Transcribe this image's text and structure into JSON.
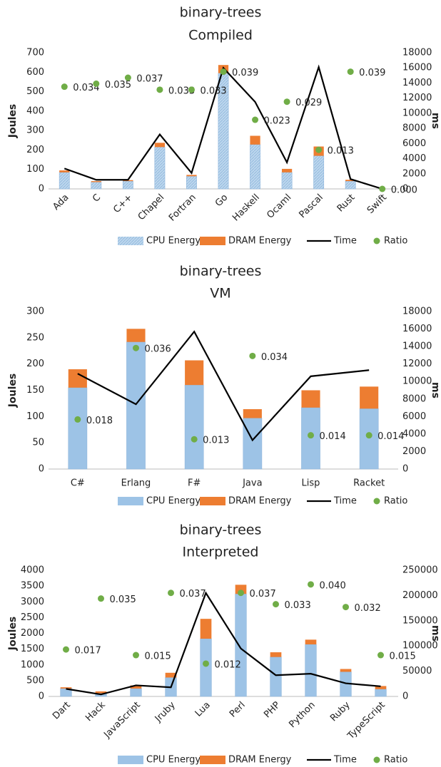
{
  "chart_data": [
    {
      "type": "bar",
      "title": "binary-trees",
      "subtitle": "Compiled",
      "y_label": "Joules",
      "y2_label": "ms",
      "grid": false,
      "rotate_x_labels": true,
      "categories": [
        "Ada",
        "C",
        "C++",
        "Chapel",
        "Fortran",
        "Go",
        "Haskell",
        "Ocaml",
        "Pascal",
        "Rust",
        "Swift"
      ],
      "ylim": [
        0,
        700
      ],
      "yticks": [
        0,
        100,
        200,
        300,
        400,
        500,
        600,
        700
      ],
      "y2lim": [
        0,
        18000
      ],
      "y2ticks": [
        0,
        2000,
        4000,
        6000,
        8000,
        10000,
        12000,
        14000,
        16000,
        18000
      ],
      "y3lim": [
        0,
        0.0453
      ],
      "series": [
        {
          "name": "CPU Energy",
          "type": "bar",
          "color": "#9dc3e6",
          "values": [
            85,
            35,
            40,
            215,
            65,
            595,
            228,
            85,
            170,
            40,
            null
          ]
        },
        {
          "name": "DRAM Energy",
          "type": "bar",
          "color": "#ed7d31",
          "values": [
            10,
            5,
            5,
            22,
            7,
            42,
            45,
            18,
            48,
            7,
            null
          ]
        },
        {
          "name": "Time",
          "type": "line",
          "axis": "y2",
          "color": "#000000",
          "values": [
            2700,
            1200,
            1200,
            7200,
            2100,
            16000,
            11500,
            3500,
            16100,
            1300,
            0
          ]
        },
        {
          "name": "Ratio",
          "type": "scatter",
          "axis": "y3",
          "color": "#70ad47",
          "values": [
            0.034,
            0.035,
            0.037,
            0.033,
            0.033,
            0.039,
            0.023,
            0.029,
            0.013,
            0.039,
            0.0
          ],
          "value_labels": [
            "0.034",
            "0.035",
            "0.037",
            "0.033",
            "0.033",
            "0.039",
            "0.023",
            "0.029",
            "0.013",
            "0.039",
            "0.000"
          ]
        }
      ]
    },
    {
      "type": "bar",
      "title": "binary-trees",
      "subtitle": "VM",
      "y_label": "Joules",
      "y2_label": "ms",
      "grid": false,
      "rotate_x_labels": false,
      "categories": [
        "C#",
        "Erlang",
        "F#",
        "Java",
        "Lisp",
        "Racket"
      ],
      "ylim": [
        0,
        300
      ],
      "yticks": [
        0,
        50,
        100,
        150,
        200,
        250,
        300
      ],
      "y2lim": [
        0,
        18000
      ],
      "y2ticks": [
        0,
        2000,
        4000,
        6000,
        8000,
        10000,
        12000,
        14000,
        16000,
        18000
      ],
      "y3lim": [
        0.0055,
        0.0452
      ],
      "series": [
        {
          "name": "CPU Energy",
          "type": "bar",
          "color": "#9dc3e6",
          "values": [
            155,
            242,
            160,
            97,
            117,
            115
          ]
        },
        {
          "name": "DRAM Energy",
          "type": "bar",
          "color": "#ed7d31",
          "values": [
            35,
            25,
            47,
            17,
            33,
            42
          ]
        },
        {
          "name": "Time",
          "type": "line",
          "axis": "y2",
          "color": "#000000",
          "values": [
            10900,
            7400,
            15700,
            3300,
            10600,
            11300
          ]
        },
        {
          "name": "Ratio",
          "type": "scatter",
          "axis": "y3",
          "color": "#70ad47",
          "values": [
            0.018,
            0.036,
            0.013,
            0.034,
            0.014,
            0.014
          ],
          "value_labels": [
            "0.018",
            "0.036",
            "0.013",
            "0.034",
            "0.014",
            "0.014"
          ]
        }
      ]
    },
    {
      "type": "bar",
      "title": "binary-trees",
      "subtitle": "Interpreted",
      "y_label": "Joules",
      "y2_label": "ms",
      "grid": false,
      "rotate_x_labels": true,
      "categories": [
        "Dart",
        "Hack",
        "JavaScript",
        "Jruby",
        "Lua",
        "Perl",
        "PHP",
        "Python",
        "Ruby",
        "TypeScript"
      ],
      "ylim": [
        0,
        4000
      ],
      "yticks": [
        0,
        500,
        1000,
        1500,
        2000,
        2500,
        3000,
        3500,
        4000
      ],
      "y2lim": [
        0,
        250000
      ],
      "y2ticks": [
        0,
        50000,
        100000,
        150000,
        200000,
        250000
      ],
      "y3lim": [
        0.0004,
        0.045
      ],
      "series": [
        {
          "name": "CPU Energy",
          "type": "bar",
          "color": "#9dc3e6",
          "values": [
            250,
            100,
            250,
            600,
            1830,
            3250,
            1250,
            1650,
            780,
            230
          ]
        },
        {
          "name": "DRAM Energy",
          "type": "bar",
          "color": "#ed7d31",
          "values": [
            40,
            60,
            100,
            150,
            630,
            290,
            150,
            150,
            90,
            100
          ]
        },
        {
          "name": "Time",
          "type": "line",
          "axis": "y2",
          "color": "#000000",
          "values": [
            15000,
            4000,
            22000,
            18000,
            205000,
            95000,
            42000,
            45000,
            26000,
            20000
          ]
        },
        {
          "name": "Ratio",
          "type": "scatter",
          "axis": "y3",
          "color": "#70ad47",
          "values": [
            0.017,
            0.035,
            0.015,
            0.037,
            0.012,
            0.037,
            0.033,
            0.04,
            0.032,
            0.015
          ],
          "value_labels": [
            "0.017",
            "0.035",
            "0.015",
            "0.037",
            "0.012",
            "0.037",
            "0.033",
            "0.040",
            "0.032",
            "0.015"
          ]
        }
      ]
    }
  ]
}
